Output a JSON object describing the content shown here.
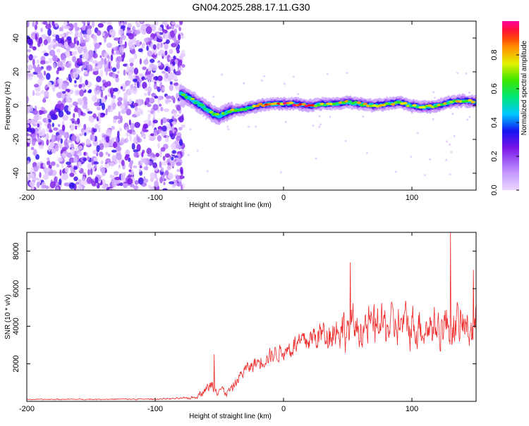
{
  "title": "GN04.2025.288.17.11.G30",
  "chart_data": [
    {
      "type": "heatmap",
      "name": "spectrogram",
      "xlabel": "Height of straight line (km)",
      "ylabel": "Frequency (Hz)",
      "xlim": [
        -200,
        150
      ],
      "ylim": [
        -50,
        50
      ],
      "x_ticks": [
        -200,
        -100,
        0,
        100
      ],
      "x_tick_labels": [
        "-200",
        "-100",
        "0",
        "100"
      ],
      "y_ticks": [
        -40,
        -20,
        0,
        20,
        40
      ],
      "y_tick_labels": [
        "-40",
        "-20",
        "0",
        "20",
        "40"
      ],
      "colorbar": {
        "label": "Normalized spectral amplitude",
        "range": [
          0,
          1
        ],
        "ticks": [
          0.0,
          0.2,
          0.4,
          0.6,
          0.8
        ],
        "tick_labels": [
          "0.0",
          "0.2",
          "0.4",
          "0.6",
          "0.8"
        ]
      },
      "ridge": {
        "x": [
          -80,
          -70,
          -60,
          -55,
          -50,
          -45,
          -40,
          -30,
          -20,
          -10,
          0,
          10,
          20,
          30,
          40,
          50,
          60,
          70,
          80,
          90,
          100,
          110,
          120,
          130,
          140,
          150
        ],
        "frequency_hz": [
          7,
          3,
          -2,
          -5,
          -6,
          -4,
          -3,
          -2,
          0,
          1,
          1,
          1,
          0,
          1,
          1,
          2,
          1,
          0,
          1,
          2,
          0,
          -1,
          0,
          2,
          3,
          2
        ]
      },
      "noise_region_x": [
        -200,
        -78
      ]
    },
    {
      "type": "line",
      "name": "snr",
      "xlabel": "Height of straight line (km)",
      "ylabel": "SNR (10 * v/v)",
      "xlim": [
        -200,
        150
      ],
      "ylim": [
        0,
        9000
      ],
      "x_ticks": [
        -200,
        -100,
        0,
        100
      ],
      "x_tick_labels": [
        "-200",
        "-100",
        "0",
        "100"
      ],
      "y_ticks": [
        2000,
        4000,
        6000,
        8000
      ],
      "y_tick_labels": [
        "2000",
        "4000",
        "6000",
        "8000"
      ],
      "series": [
        {
          "name": "SNR",
          "color": "#ee2a2a",
          "envelope_x": [
            -200,
            -150,
            -100,
            -80,
            -70,
            -60,
            -55,
            -50,
            -45,
            -40,
            -35,
            -30,
            -20,
            -10,
            0,
            10,
            20,
            30,
            40,
            50,
            60,
            70,
            80,
            90,
            100,
            110,
            120,
            130,
            140,
            150
          ],
          "envelope_mean": [
            100,
            110,
            120,
            150,
            200,
            700,
            900,
            700,
            450,
            700,
            1300,
            1700,
            2100,
            2500,
            2700,
            3000,
            3300,
            3600,
            3800,
            3900,
            3900,
            4000,
            4100,
            4000,
            4100,
            4000,
            4000,
            4100,
            4000,
            3900
          ],
          "envelope_spread": [
            50,
            50,
            60,
            80,
            150,
            450,
            700,
            500,
            350,
            450,
            500,
            600,
            700,
            800,
            900,
            1100,
            1300,
            1500,
            1700,
            1800,
            1800,
            1900,
            1900,
            1900,
            1900,
            1900,
            1900,
            2000,
            1900,
            1900
          ],
          "peaks": [
            {
              "x": -54,
              "y": 2500
            },
            {
              "x": 52,
              "y": 7400
            },
            {
              "x": 130,
              "y": 9000
            },
            {
              "x": 148,
              "y": 7000
            }
          ]
        }
      ]
    }
  ]
}
